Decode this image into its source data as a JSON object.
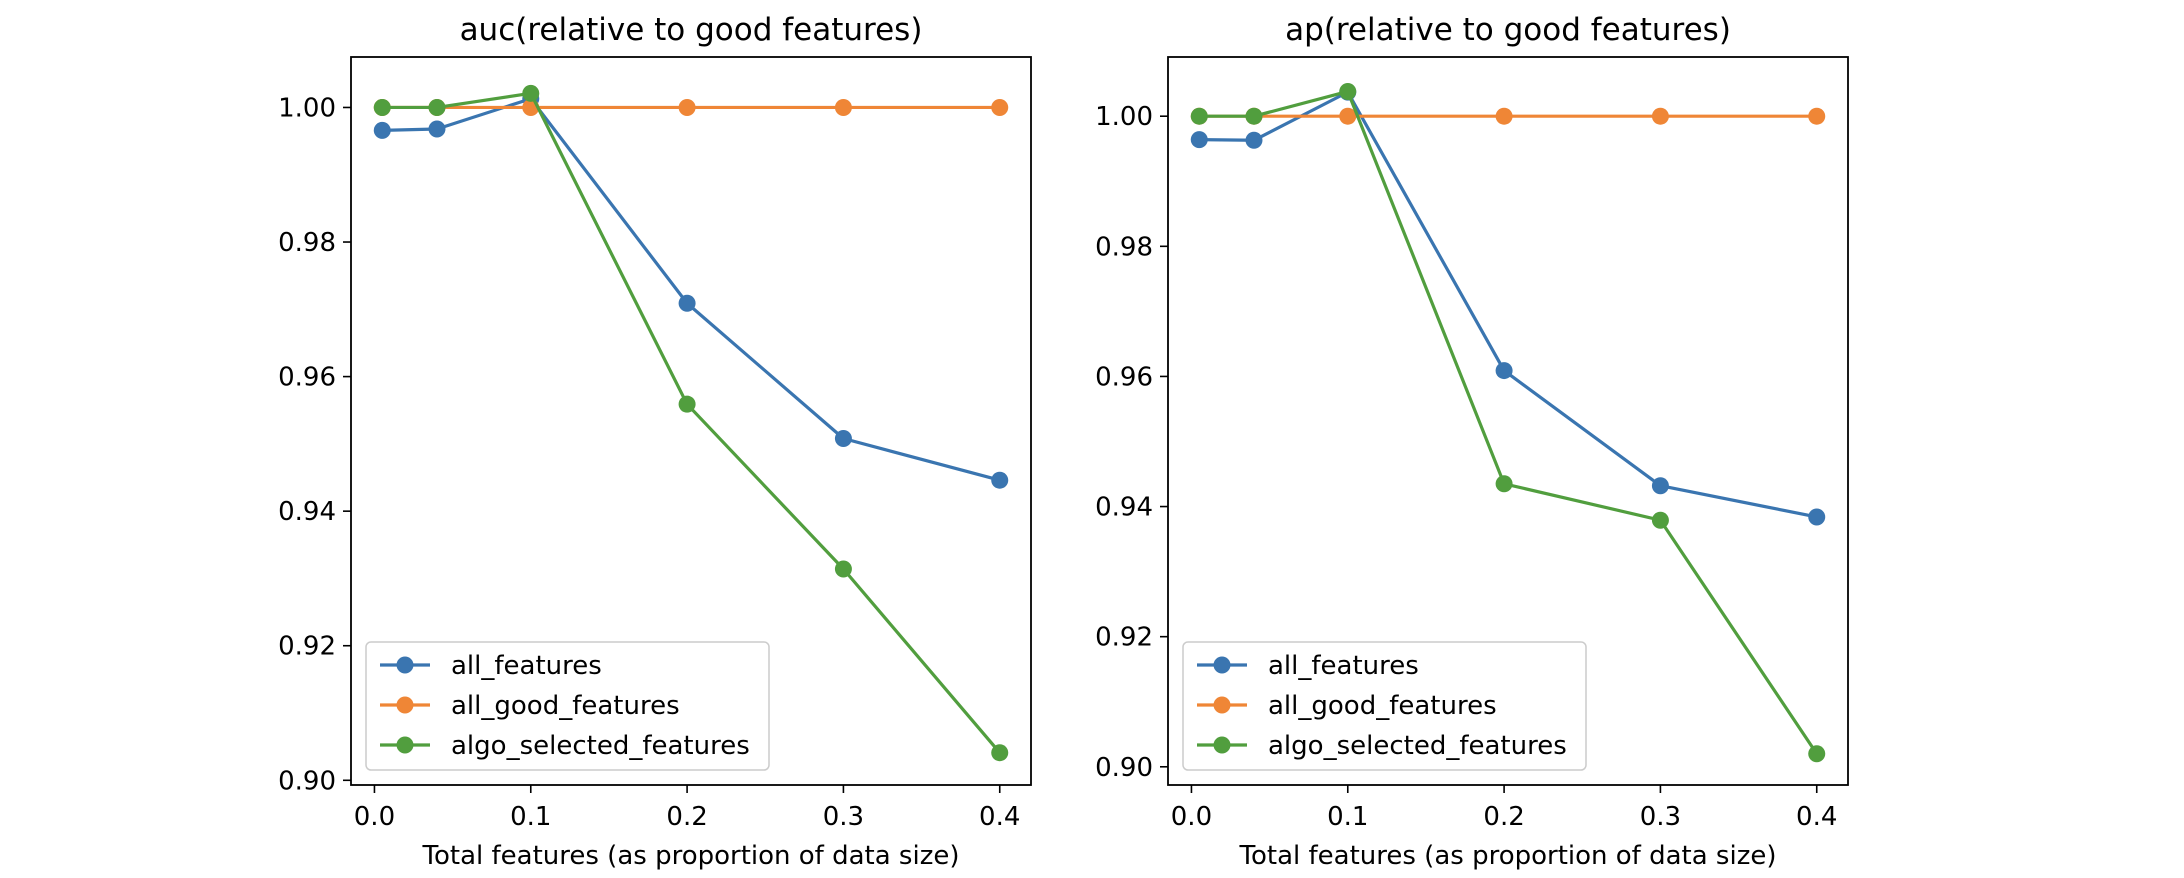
{
  "chart_data": [
    {
      "type": "line",
      "title": "auc(relative to good features)",
      "xlabel": "Total features (as proportion of data size)",
      "ylabel": "",
      "xlim": [
        -0.015,
        0.42
      ],
      "ylim": [
        0.8993,
        1.0075
      ],
      "xticks": [
        0.0,
        0.1,
        0.2,
        0.3,
        0.4
      ],
      "xtick_labels": [
        "0.0",
        "0.1",
        "0.2",
        "0.3",
        "0.4"
      ],
      "yticks": [
        0.9,
        0.92,
        0.94,
        0.96,
        0.98,
        1.0
      ],
      "ytick_labels": [
        "0.90",
        "0.92",
        "0.94",
        "0.96",
        "0.98",
        "1.00"
      ],
      "grid": false,
      "legend_position": "lower-left",
      "series": [
        {
          "name": "all_features",
          "color": "#3a75b0",
          "x": [
            0.005,
            0.04,
            0.1,
            0.2,
            0.3,
            0.4
          ],
          "y": [
            0.9966,
            0.9968,
            1.0013,
            0.9709,
            0.9508,
            0.9446
          ]
        },
        {
          "name": "all_good_features",
          "color": "#ef8636",
          "x": [
            0.005,
            0.04,
            0.1,
            0.2,
            0.3,
            0.4
          ],
          "y": [
            1.0,
            1.0,
            1.0,
            1.0,
            1.0,
            1.0
          ]
        },
        {
          "name": "algo_selected_features",
          "color": "#519e3e",
          "x": [
            0.005,
            0.04,
            0.1,
            0.2,
            0.3,
            0.4
          ],
          "y": [
            1.0,
            1.0,
            1.0021,
            0.9559,
            0.9314,
            0.9041
          ]
        }
      ]
    },
    {
      "type": "line",
      "title": "ap(relative to good features)",
      "xlabel": "Total features (as proportion of data size)",
      "ylabel": "",
      "xlim": [
        -0.015,
        0.42
      ],
      "ylim": [
        0.8972,
        1.0091
      ],
      "xticks": [
        0.0,
        0.1,
        0.2,
        0.3,
        0.4
      ],
      "xtick_labels": [
        "0.0",
        "0.1",
        "0.2",
        "0.3",
        "0.4"
      ],
      "yticks": [
        0.9,
        0.92,
        0.94,
        0.96,
        0.98,
        1.0
      ],
      "ytick_labels": [
        "0.90",
        "0.92",
        "0.94",
        "0.96",
        "0.98",
        "1.00"
      ],
      "grid": false,
      "legend_position": "lower-left",
      "series": [
        {
          "name": "all_features",
          "color": "#3a75b0",
          "x": [
            0.005,
            0.04,
            0.1,
            0.2,
            0.3,
            0.4
          ],
          "y": [
            0.9964,
            0.9963,
            1.0037,
            0.9609,
            0.9432,
            0.9384
          ]
        },
        {
          "name": "all_good_features",
          "color": "#ef8636",
          "x": [
            0.005,
            0.04,
            0.1,
            0.2,
            0.3,
            0.4
          ],
          "y": [
            1.0,
            1.0,
            1.0,
            1.0,
            1.0,
            1.0
          ]
        },
        {
          "name": "algo_selected_features",
          "color": "#519e3e",
          "x": [
            0.005,
            0.04,
            0.1,
            0.2,
            0.3,
            0.4
          ],
          "y": [
            1.0,
            1.0,
            1.0038,
            0.9435,
            0.9379,
            0.902
          ]
        }
      ]
    }
  ]
}
